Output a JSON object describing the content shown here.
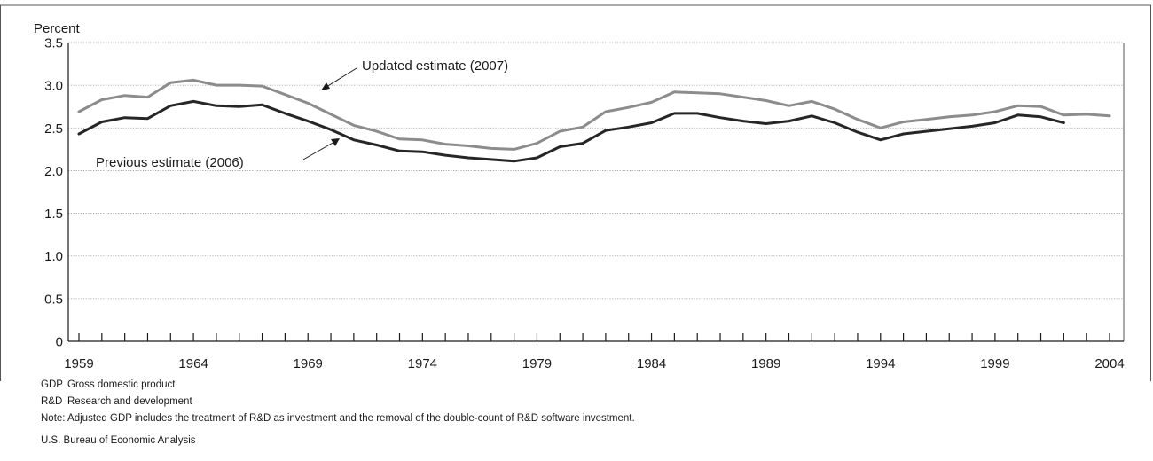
{
  "chart_data": {
    "type": "line",
    "title": "",
    "ylabel": "Percent",
    "xlabel": "",
    "ylim": [
      0,
      3.5
    ],
    "xlim": [
      1959,
      2004
    ],
    "y_ticks": [
      "0",
      "0.5",
      "1.0",
      "1.5",
      "2.0",
      "2.5",
      "3.0",
      "3.5"
    ],
    "x_tick_labels": [
      "1959",
      "1964",
      "1969",
      "1974",
      "1979",
      "1984",
      "1989",
      "1994",
      "1999",
      "2004"
    ],
    "grid": "horizontal dotted",
    "series": [
      {
        "name": "Updated estimate (2007)",
        "color": "#8c8c8c",
        "x": [
          1959,
          1960,
          1961,
          1962,
          1963,
          1964,
          1965,
          1966,
          1967,
          1968,
          1969,
          1970,
          1971,
          1972,
          1973,
          1974,
          1975,
          1976,
          1977,
          1978,
          1979,
          1980,
          1981,
          1982,
          1983,
          1984,
          1985,
          1986,
          1987,
          1988,
          1989,
          1990,
          1991,
          1992,
          1993,
          1994,
          1995,
          1996,
          1997,
          1998,
          1999,
          2000,
          2001,
          2002,
          2003,
          2004
        ],
        "values": [
          2.69,
          2.83,
          2.88,
          2.86,
          3.03,
          3.06,
          3.0,
          3.0,
          2.99,
          2.89,
          2.79,
          2.66,
          2.53,
          2.46,
          2.37,
          2.36,
          2.31,
          2.29,
          2.26,
          2.25,
          2.32,
          2.46,
          2.51,
          2.69,
          2.74,
          2.8,
          2.92,
          2.91,
          2.9,
          2.86,
          2.82,
          2.76,
          2.81,
          2.72,
          2.6,
          2.5,
          2.57,
          2.6,
          2.63,
          2.65,
          2.69,
          2.76,
          2.75,
          2.65,
          2.66,
          2.64
        ]
      },
      {
        "name": "Previous estimate (2006)",
        "color": "#262626",
        "x": [
          1959,
          1960,
          1961,
          1962,
          1963,
          1964,
          1965,
          1966,
          1967,
          1968,
          1969,
          1970,
          1971,
          1972,
          1973,
          1974,
          1975,
          1976,
          1977,
          1978,
          1979,
          1980,
          1981,
          1982,
          1983,
          1984,
          1985,
          1986,
          1987,
          1988,
          1989,
          1990,
          1991,
          1992,
          1993,
          1994,
          1995,
          1996,
          1997,
          1998,
          1999,
          2000,
          2001,
          2002
        ],
        "values": [
          2.43,
          2.57,
          2.62,
          2.61,
          2.76,
          2.81,
          2.76,
          2.75,
          2.77,
          2.67,
          2.58,
          2.48,
          2.36,
          2.3,
          2.23,
          2.22,
          2.18,
          2.15,
          2.13,
          2.11,
          2.15,
          2.28,
          2.32,
          2.47,
          2.51,
          2.56,
          2.67,
          2.67,
          2.62,
          2.58,
          2.55,
          2.58,
          2.64,
          2.56,
          2.45,
          2.36,
          2.43,
          2.46,
          2.49,
          2.52,
          2.56,
          2.65,
          2.63,
          2.56
        ]
      }
    ],
    "annotations": [
      {
        "text": "Updated estimate (2007)",
        "series_index": 0
      },
      {
        "text": "Previous estimate (2006)",
        "series_index": 1
      }
    ]
  },
  "footnotes": {
    "gdp_abbr": "GDP",
    "gdp_def": "Gross domestic product",
    "rd_abbr": "R&D",
    "rd_def": "Research and development",
    "note": "Note: Adjusted GDP includes the treatment of R&D as investment and the removal of the double-count of R&D software investment.",
    "source": "U.S. Bureau of Economic Analysis"
  }
}
